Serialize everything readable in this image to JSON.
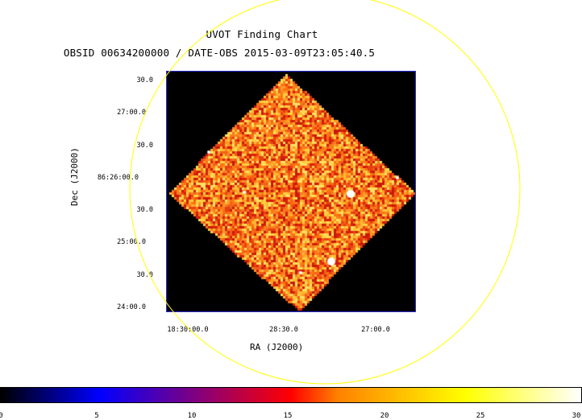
{
  "title": "UVOT Finding Chart",
  "subtitle": "OBSID 00634200000 / DATE-OBS 2015-03-09T23:05:40.5",
  "axes": {
    "xlabel": "RA (J2000)",
    "ylabel": "Dec (J2000)",
    "xticks": [
      "18:30:00.0",
      "28:30.0",
      "27:00.0"
    ],
    "yticks": [
      "30.0",
      "27:00.0",
      "30.0",
      "86:26:00.0",
      "30.0",
      "25:00.0",
      "30.0",
      "24:00.0"
    ]
  },
  "colorbar": {
    "min": 0,
    "max": 30,
    "ticks": [
      "0",
      "5",
      "10",
      "15",
      "20",
      "25",
      "30"
    ],
    "colormap": [
      "#000000",
      "#0000ff",
      "#ff0000",
      "#ff8000",
      "#ffff00",
      "#ffffff"
    ]
  },
  "region": {
    "shape": "circle",
    "color": "#ffff00"
  },
  "image": {
    "background": "#000000",
    "frame_color": "#2a2ad6"
  }
}
